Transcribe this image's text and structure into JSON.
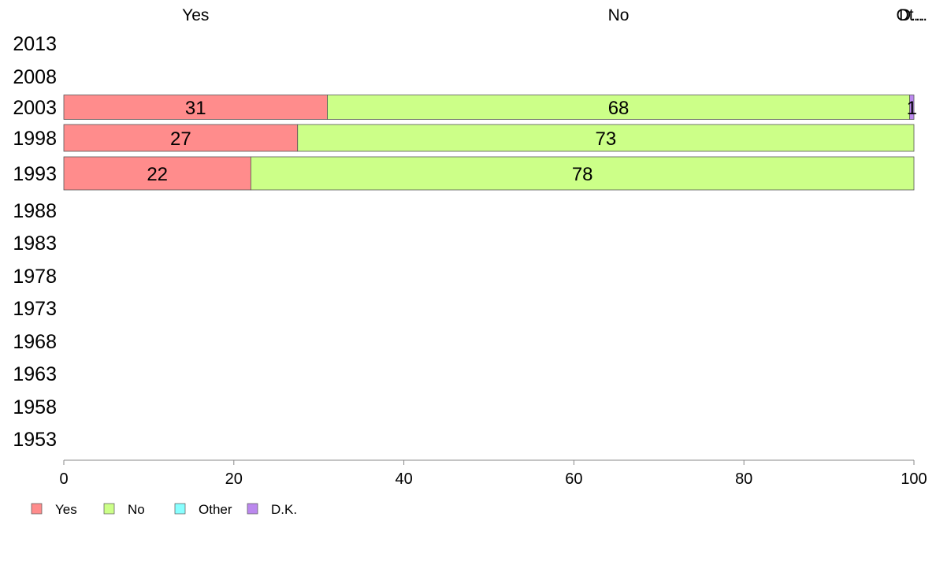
{
  "chart_data": {
    "type": "bar",
    "orientation": "horizontal",
    "stacked": true,
    "categories": [
      "2013",
      "2008",
      "2003",
      "1998",
      "1993",
      "1988",
      "1983",
      "1978",
      "1973",
      "1968",
      "1963",
      "1958",
      "1953"
    ],
    "series": [
      {
        "name": "Yes",
        "color": "#ff8c8c",
        "values": [
          null,
          null,
          31,
          27.5,
          22,
          null,
          null,
          null,
          null,
          null,
          null,
          null,
          null
        ],
        "labels": [
          "",
          "",
          "31",
          "27",
          "22",
          "",
          "",
          "",
          "",
          "",
          "",
          "",
          ""
        ]
      },
      {
        "name": "No",
        "color": "#ccff88",
        "values": [
          null,
          null,
          68.5,
          72.5,
          78,
          null,
          null,
          null,
          null,
          null,
          null,
          null,
          null
        ],
        "labels": [
          "",
          "",
          "68",
          "73",
          "78",
          "",
          "",
          "",
          "",
          "",
          "",
          "",
          ""
        ]
      },
      {
        "name": "Other",
        "color": "#88ffff",
        "values": [
          null,
          null,
          0,
          0,
          0,
          null,
          null,
          null,
          null,
          null,
          null,
          null,
          null
        ],
        "labels": [
          "",
          "",
          "",
          "",
          "",
          "",
          "",
          "",
          "",
          "",
          "",
          "",
          ""
        ]
      },
      {
        "name": "D.K.",
        "color": "#bb88ee",
        "values": [
          null,
          null,
          0.5,
          0,
          0,
          null,
          null,
          null,
          null,
          null,
          null,
          null,
          null
        ],
        "labels": [
          "",
          "",
          "1",
          "",
          "",
          "",
          "",
          "",
          "",
          "",
          "",
          "",
          ""
        ]
      }
    ],
    "top_labels": [
      {
        "text": "Yes",
        "at": 15.5
      },
      {
        "text": "No",
        "at": 65.25
      },
      {
        "text": "Ot...",
        "at": 99.75
      },
      {
        "text": "D...",
        "at": 99.75
      }
    ],
    "xlim": [
      0,
      100
    ],
    "xticks": [
      0,
      20,
      40,
      60,
      80,
      100
    ],
    "xtick_labels": [
      "0",
      "20",
      "40",
      "60",
      "80",
      "100"
    ],
    "xlabel": "",
    "ylabel": "",
    "title": "",
    "grid": false,
    "legend_position": "bottom-left"
  }
}
